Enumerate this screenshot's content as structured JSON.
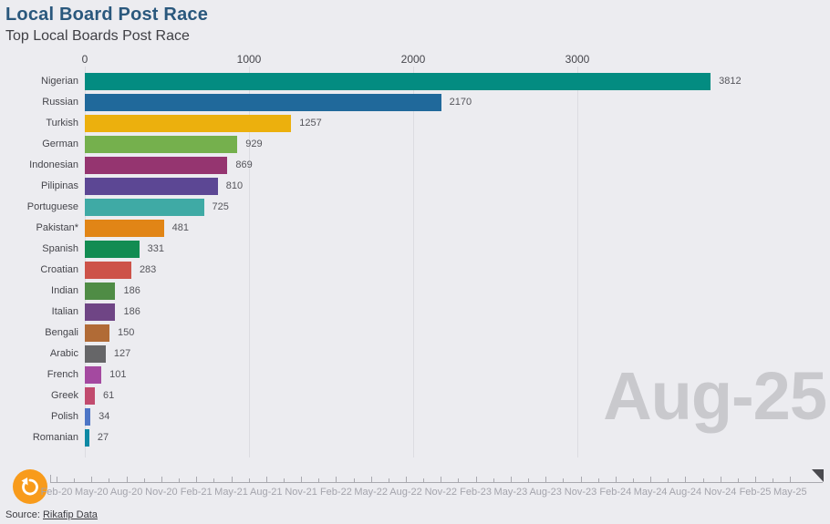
{
  "header": {
    "title": "Local Board Post Race",
    "subtitle": "Top Local Boards Post Race"
  },
  "chart_data": {
    "type": "bar",
    "orientation": "horizontal",
    "title": "Local Board Post Race",
    "subtitle": "Top Local Boards Post Race",
    "current_period": "Aug-25",
    "xlim": [
      0,
      4200
    ],
    "x_ticks": [
      0,
      1000,
      2000,
      3000
    ],
    "grid": true,
    "categories": [
      "Nigerian",
      "Russian",
      "Turkish",
      "German",
      "Indonesian",
      "Pilipinas",
      "Portuguese",
      "Pakistan*",
      "Spanish",
      "Croatian",
      "Indian",
      "Italian",
      "Bengali",
      "Arabic",
      "French",
      "Greek",
      "Polish",
      "Romanian"
    ],
    "values": [
      3812,
      2170,
      1257,
      929,
      869,
      810,
      725,
      481,
      331,
      283,
      186,
      186,
      150,
      127,
      101,
      61,
      34,
      27
    ],
    "bar_colors": [
      "#038c81",
      "#20699b",
      "#ecb00d",
      "#75b04d",
      "#953570",
      "#5c4794",
      "#3faaa5",
      "#e18516",
      "#128c52",
      "#cd5349",
      "#4f8c45",
      "#6f4585",
      "#b16b36",
      "#666668",
      "#a449a0",
      "#c14b6e",
      "#4d75c6",
      "#0e89a4"
    ]
  },
  "timeline": {
    "labels": [
      "Feb-20",
      "May-20",
      "Aug-20",
      "Nov-20",
      "Feb-21",
      "May-21",
      "Aug-21",
      "Nov-21",
      "Feb-22",
      "May-22",
      "Aug-22",
      "Nov-22",
      "Feb-23",
      "May-23",
      "Aug-23",
      "Nov-23",
      "Feb-24",
      "May-24",
      "Aug-24",
      "Nov-24",
      "Feb-25",
      "May-25"
    ]
  },
  "footer": {
    "source_label": "Source:",
    "source_link_text": "Rikafip Data"
  },
  "colors": {
    "background": "#ececf0",
    "accent_orange": "#f89b1b",
    "title_blue": "#2a587d",
    "watermark_gray": "#c9c9cd",
    "grid_gray": "#dcdce1"
  }
}
